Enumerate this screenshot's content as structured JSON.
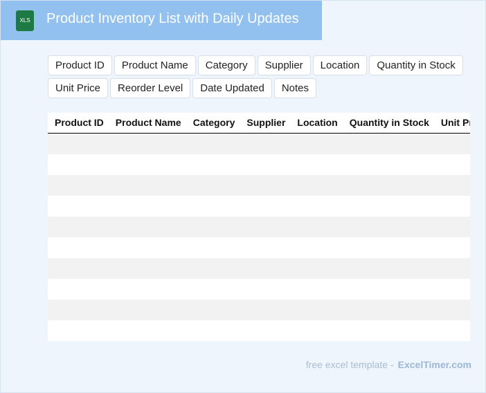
{
  "header": {
    "icon": "XLS",
    "title": "Product Inventory List with Daily Updates"
  },
  "fields": [
    "Product ID",
    "Product Name",
    "Category",
    "Supplier",
    "Location",
    "Quantity in Stock",
    "Unit Price",
    "Reorder Level",
    "Date Updated",
    "Notes"
  ],
  "table": {
    "columns": [
      "Product ID",
      "Product Name",
      "Category",
      "Supplier",
      "Location",
      "Quantity in Stock",
      "Unit Price"
    ]
  },
  "footer": {
    "text": "free excel template -",
    "brand": "ExcelTimer.com"
  }
}
